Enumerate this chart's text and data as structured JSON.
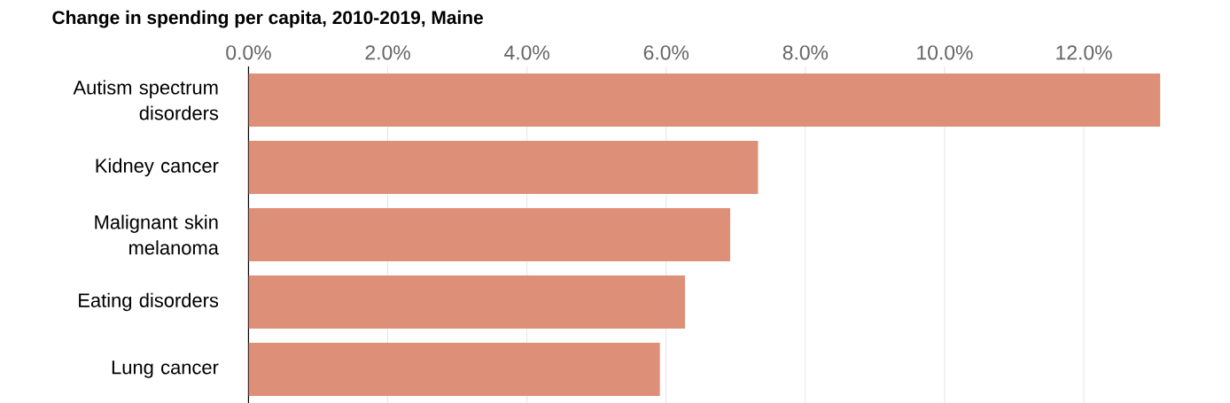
{
  "chart_data": {
    "type": "bar",
    "orientation": "horizontal",
    "title": "Change in spending per capita, 2010-2019, Maine",
    "categories": [
      "Autism spectrum disorders",
      "Kidney cancer",
      "Malignant skin melanoma",
      "Eating disorders",
      "Lung cancer"
    ],
    "values": [
      13.1,
      7.32,
      6.92,
      6.27,
      5.91
    ],
    "color": "#dd8f78",
    "xlim": [
      0,
      13.1
    ],
    "xticks": [
      {
        "value": 0,
        "label": "0.0%"
      },
      {
        "value": 2,
        "label": "2.0%"
      },
      {
        "value": 4,
        "label": "4.0%"
      },
      {
        "value": 6,
        "label": "6.0%"
      },
      {
        "value": 8,
        "label": "8.0%"
      },
      {
        "value": 10,
        "label": "10.0%"
      },
      {
        "value": 12,
        "label": "12.0%"
      }
    ],
    "grid": "x"
  }
}
